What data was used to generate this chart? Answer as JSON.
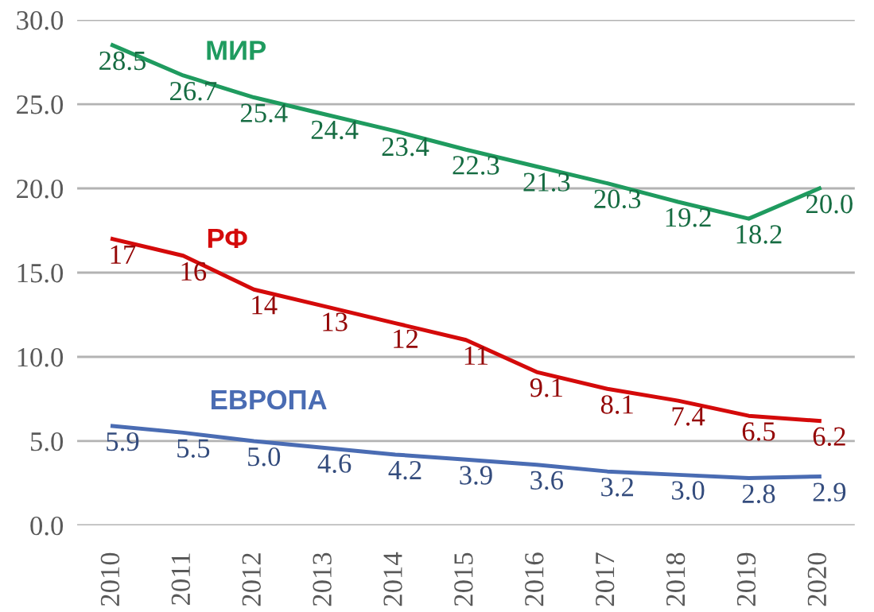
{
  "chart_data": {
    "type": "line",
    "categories": [
      "2010",
      "2011",
      "2012",
      "2013",
      "2014",
      "2015",
      "2016",
      "2017",
      "2018",
      "2019",
      "2020"
    ],
    "ylim": [
      0,
      30
    ],
    "yticks": [
      {
        "value": 0,
        "label": "0.0"
      },
      {
        "value": 5,
        "label": "5.0"
      },
      {
        "value": 10,
        "label": "10.0"
      },
      {
        "value": 15,
        "label": "15.0"
      },
      {
        "value": 20,
        "label": "20.0"
      },
      {
        "value": 25,
        "label": "25.0"
      },
      {
        "value": 30,
        "label": "30.0"
      }
    ],
    "grid": "y",
    "legend": false,
    "line_style": "solid",
    "series": [
      {
        "name": "МИР",
        "color": "#1f9b5f",
        "values": [
          28.5,
          26.7,
          25.4,
          24.4,
          23.4,
          22.3,
          21.3,
          20.3,
          19.2,
          18.2,
          20.0
        ],
        "value_labels": [
          "28.5",
          "26.7",
          "25.4",
          "24.4",
          "23.4",
          "22.3",
          "21.3",
          "20.3",
          "19.2",
          "18.2",
          "20.0"
        ]
      },
      {
        "name": "РФ",
        "color": "#d40a0a",
        "values": [
          17,
          16,
          14,
          13,
          12,
          11,
          9.1,
          8.1,
          7.4,
          6.5,
          6.2
        ],
        "value_labels": [
          "17",
          "16",
          "14",
          "13",
          "12",
          "11",
          "9.1",
          "8.1",
          "7.4",
          "6.5",
          "6.2"
        ]
      },
      {
        "name": "ЕВРОПА",
        "color": "#4a6cb3",
        "values": [
          5.9,
          5.5,
          5.0,
          4.6,
          4.2,
          3.9,
          3.6,
          3.2,
          3.0,
          2.8,
          2.9
        ],
        "value_labels": [
          "5.9",
          "5.5",
          "5.0",
          "4.6",
          "4.2",
          "3.9",
          "3.6",
          "3.2",
          "3.0",
          "2.8",
          "2.9"
        ]
      }
    ]
  }
}
